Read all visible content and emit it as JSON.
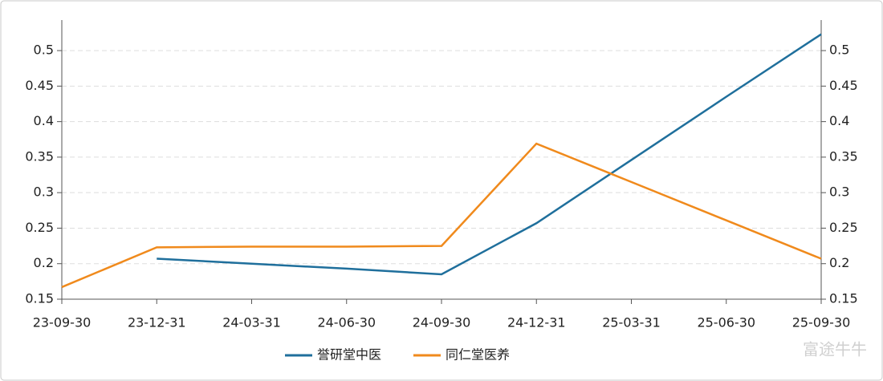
{
  "chart_data": {
    "type": "line",
    "categories": [
      "23-09-30",
      "23-12-31",
      "24-03-31",
      "24-06-30",
      "24-09-30",
      "24-12-31",
      "25-03-31",
      "25-06-30",
      "25-09-30"
    ],
    "series": [
      {
        "name": "誉研堂中医",
        "color": "#1f6f9c",
        "values": [
          null,
          0.207,
          0.2,
          0.193,
          0.185,
          0.257,
          0.346,
          0.435,
          0.523
        ]
      },
      {
        "name": "同仁堂医养",
        "color": "#f08a1c",
        "values": [
          0.167,
          0.223,
          0.224,
          0.224,
          0.225,
          0.369,
          0.315,
          0.261,
          0.207
        ]
      }
    ],
    "ylim": [
      0.15,
      0.543
    ],
    "yticks": [
      0.15,
      0.2,
      0.25,
      0.3,
      0.35,
      0.4,
      0.45,
      0.5
    ],
    "y2lim": [
      0.15,
      0.543
    ],
    "y2ticks": [
      0.15,
      0.2,
      0.25,
      0.3,
      0.35,
      0.4,
      0.45,
      0.5
    ],
    "grid": true,
    "legend": "bottom",
    "watermark": "富途牛牛"
  }
}
